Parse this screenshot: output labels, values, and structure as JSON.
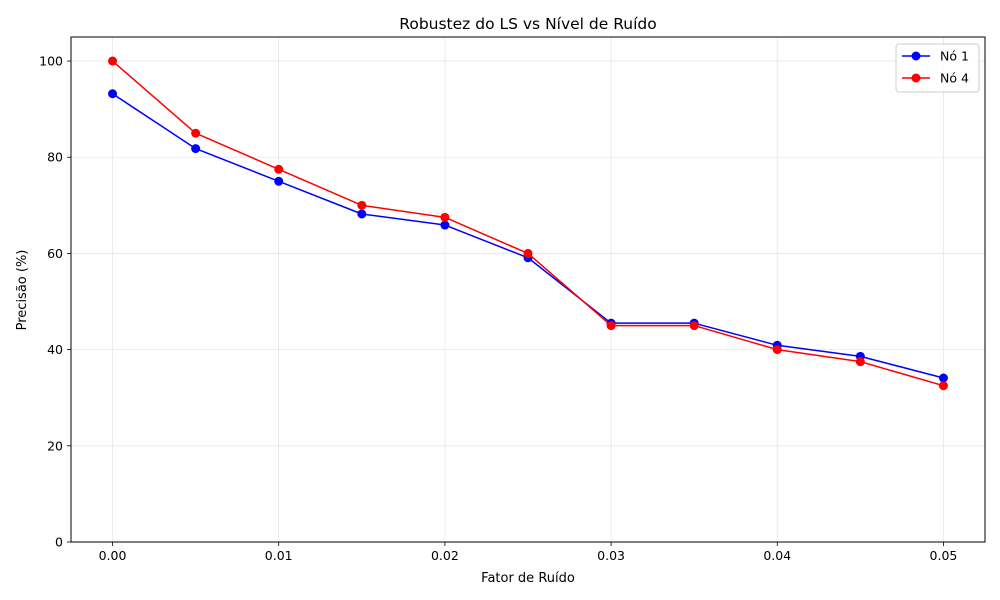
{
  "chart_data": {
    "type": "line",
    "title": "Robustez do LS vs Nível de Ruído",
    "xlabel": "Fator de Ruído",
    "ylabel": "Precisão (%)",
    "x": [
      0.0,
      0.005,
      0.01,
      0.015,
      0.02,
      0.025,
      0.03,
      0.035,
      0.04,
      0.045,
      0.05
    ],
    "xlim": [
      -0.0025,
      0.0525
    ],
    "ylim": [
      0,
      105
    ],
    "xticks": [
      0.0,
      0.01,
      0.02,
      0.03,
      0.04,
      0.05
    ],
    "xtick_labels": [
      "0.00",
      "0.01",
      "0.02",
      "0.03",
      "0.04",
      "0.05"
    ],
    "yticks": [
      0,
      20,
      40,
      60,
      80,
      100
    ],
    "ytick_labels": [
      "0",
      "20",
      "40",
      "60",
      "80",
      "100"
    ],
    "grid": true,
    "legend_position": "top-right",
    "series": [
      {
        "name": "Nó 1",
        "color": "#0000ff",
        "marker": "circle",
        "values": [
          93.2,
          81.8,
          75.0,
          68.2,
          65.9,
          59.1,
          45.5,
          45.5,
          40.9,
          38.6,
          34.1
        ]
      },
      {
        "name": "Nó 4",
        "color": "#ff0000",
        "marker": "circle",
        "values": [
          100.0,
          85.0,
          77.5,
          70.0,
          67.5,
          60.0,
          45.0,
          45.0,
          40.0,
          37.5,
          32.5
        ]
      }
    ]
  }
}
